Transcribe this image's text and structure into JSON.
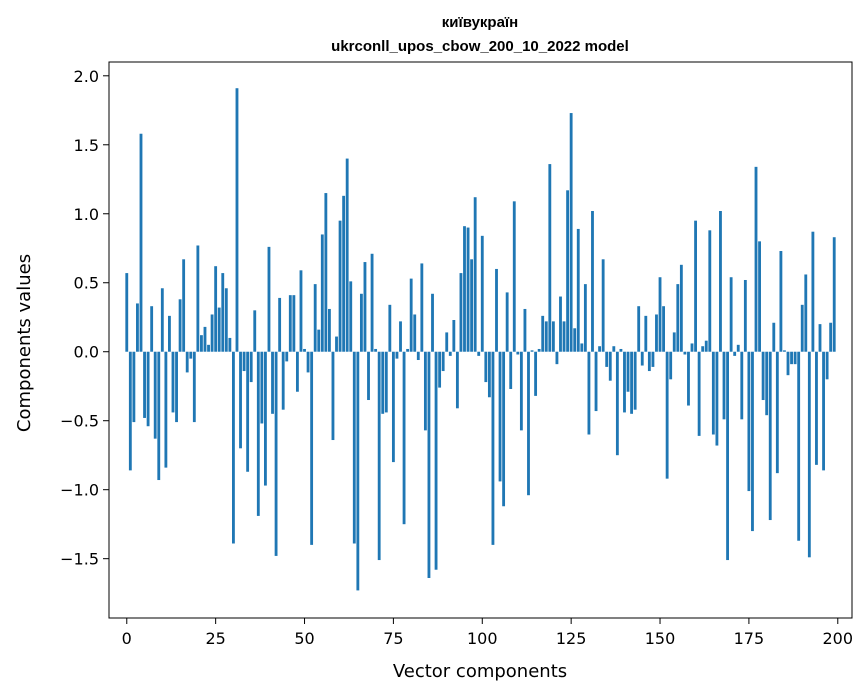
{
  "chart_data": {
    "type": "bar",
    "title_lines": [
      "київукраїн",
      "ukrconll_upos_cbow_200_10_2022 model"
    ],
    "xlabel": "Vector components",
    "ylabel": "Components values",
    "xlim": [
      -5,
      204
    ],
    "ylim": [
      -1.93,
      2.1
    ],
    "xticks": [
      0,
      25,
      50,
      75,
      100,
      125,
      150,
      175,
      200
    ],
    "yticks": [
      -1.5,
      -1.0,
      -0.5,
      0.0,
      0.5,
      1.0,
      1.5,
      2.0
    ],
    "ytick_labels": [
      "−1.5",
      "−1.0",
      "−0.5",
      "0.0",
      "0.5",
      "1.0",
      "1.5",
      "2.0"
    ],
    "bar_color": "#1f77b4",
    "grid": false,
    "x": [
      0,
      1,
      2,
      3,
      4,
      5,
      6,
      7,
      8,
      9,
      10,
      11,
      12,
      13,
      14,
      15,
      16,
      17,
      18,
      19,
      20,
      21,
      22,
      23,
      24,
      25,
      26,
      27,
      28,
      29,
      30,
      31,
      32,
      33,
      34,
      35,
      36,
      37,
      38,
      39,
      40,
      41,
      42,
      43,
      44,
      45,
      46,
      47,
      48,
      49,
      50,
      51,
      52,
      53,
      54,
      55,
      56,
      57,
      58,
      59,
      60,
      61,
      62,
      63,
      64,
      65,
      66,
      67,
      68,
      69,
      70,
      71,
      72,
      73,
      74,
      75,
      76,
      77,
      78,
      79,
      80,
      81,
      82,
      83,
      84,
      85,
      86,
      87,
      88,
      89,
      90,
      91,
      92,
      93,
      94,
      95,
      96,
      97,
      98,
      99,
      100,
      101,
      102,
      103,
      104,
      105,
      106,
      107,
      108,
      109,
      110,
      111,
      112,
      113,
      114,
      115,
      116,
      117,
      118,
      119,
      120,
      121,
      122,
      123,
      124,
      125,
      126,
      127,
      128,
      129,
      130,
      131,
      132,
      133,
      134,
      135,
      136,
      137,
      138,
      139,
      140,
      141,
      142,
      143,
      144,
      145,
      146,
      147,
      148,
      149,
      150,
      151,
      152,
      153,
      154,
      155,
      156,
      157,
      158,
      159,
      160,
      161,
      162,
      163,
      164,
      165,
      166,
      167,
      168,
      169,
      170,
      171,
      172,
      173,
      174,
      175,
      176,
      177,
      178,
      179,
      180,
      181,
      182,
      183,
      184,
      185,
      186,
      187,
      188,
      189,
      190,
      191,
      192,
      193,
      194,
      195,
      196,
      197,
      198,
      199
    ],
    "values": [
      0.57,
      -0.86,
      -0.51,
      0.35,
      1.58,
      -0.48,
      -0.54,
      0.33,
      -0.63,
      -0.93,
      0.46,
      -0.84,
      0.26,
      -0.44,
      -0.51,
      0.38,
      0.67,
      -0.15,
      -0.05,
      -0.51,
      0.77,
      0.12,
      0.18,
      0.05,
      0.27,
      0.62,
      0.32,
      0.57,
      0.46,
      0.1,
      -1.39,
      1.91,
      -0.7,
      -0.14,
      -0.87,
      -0.22,
      0.3,
      -1.19,
      -0.52,
      -0.97,
      0.76,
      -0.45,
      -1.48,
      0.39,
      -0.42,
      -0.07,
      0.41,
      0.41,
      -0.29,
      0.59,
      0.02,
      -0.15,
      -1.4,
      0.49,
      0.16,
      0.85,
      1.15,
      0.31,
      -0.64,
      0.11,
      0.95,
      1.13,
      1.4,
      0.51,
      -1.39,
      -1.73,
      0.42,
      0.65,
      -0.35,
      0.71,
      0.02,
      -1.51,
      -0.45,
      -0.44,
      0.34,
      -0.8,
      -0.05,
      0.22,
      -1.25,
      0.02,
      0.53,
      0.27,
      -0.06,
      0.64,
      -0.57,
      -1.64,
      0.42,
      -1.58,
      -0.26,
      -0.14,
      0.14,
      -0.03,
      0.23,
      -0.41,
      0.57,
      0.91,
      0.9,
      0.67,
      1.12,
      -0.03,
      0.84,
      -0.22,
      -0.33,
      -1.4,
      0.6,
      -0.94,
      -1.12,
      0.43,
      -0.27,
      1.09,
      -0.02,
      -0.57,
      0.31,
      -1.04,
      0.01,
      -0.32,
      0.02,
      0.26,
      0.22,
      1.36,
      0.22,
      -0.09,
      0.4,
      0.22,
      1.17,
      1.73,
      0.17,
      0.89,
      0.06,
      0.49,
      -0.6,
      1.02,
      -0.43,
      0.04,
      0.67,
      -0.11,
      -0.21,
      0.04,
      -0.75,
      0.02,
      -0.44,
      -0.29,
      -0.45,
      -0.42,
      0.33,
      -0.1,
      0.26,
      -0.14,
      -0.11,
      0.27,
      0.54,
      0.33,
      -0.92,
      -0.2,
      0.14,
      0.49,
      0.63,
      -0.02,
      -0.39,
      0.06,
      0.95,
      -0.61,
      0.04,
      0.08,
      0.88,
      -0.6,
      -0.68,
      1.02,
      -0.49,
      -1.51,
      0.54,
      -0.03,
      0.05,
      -0.49,
      0.52,
      -1.01,
      -1.3,
      1.34,
      0.8,
      -0.35,
      -0.46,
      -1.22,
      0.21,
      -0.88,
      0.73,
      0.01,
      -0.17,
      -0.09,
      -0.09,
      -1.37,
      0.34,
      0.56,
      -1.49,
      0.87,
      -0.82,
      0.2,
      -0.86,
      -0.2,
      0.21,
      0.83
    ]
  }
}
